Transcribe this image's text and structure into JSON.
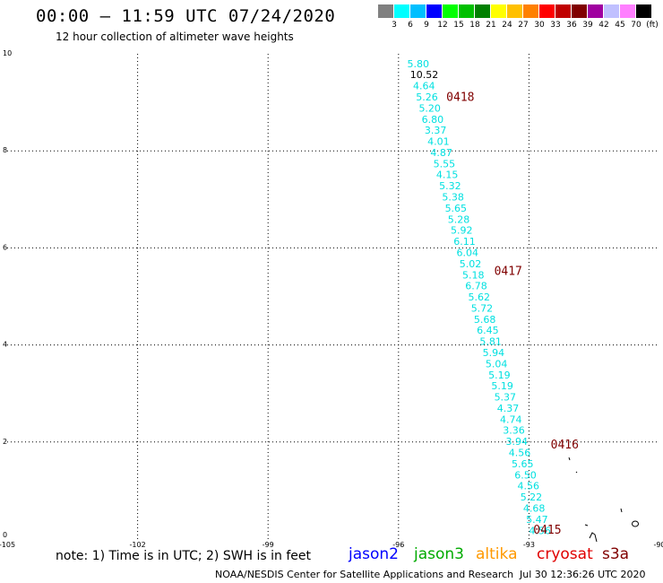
{
  "header": {
    "title": "00:00 – 11:59 UTC 07/24/2020",
    "subtitle": "12 hour collection of altimeter wave heights"
  },
  "legend": {
    "colors": [
      "#808080",
      "#00ffff",
      "#00bfff",
      "#0000ff",
      "#00ff00",
      "#00c000",
      "#008000",
      "#ffff00",
      "#ffc000",
      "#ff8000",
      "#ff0000",
      "#c00000",
      "#800000",
      "#a000a0",
      "#c0c0ff",
      "#ff80ff",
      "#000000"
    ],
    "labels": [
      "3",
      "6",
      "9",
      "12",
      "15",
      "18",
      "21",
      "24",
      "27",
      "30",
      "33",
      "36",
      "39",
      "42",
      "45",
      "70",
      "(ft)"
    ]
  },
  "footer": {
    "note": "note:  1) Time is in UTC;  2) SWH is in feet",
    "credit": "NOAA/NESDIS Center for Satellite Applications and Research",
    "timestamp": "Jul 30 12:36:26 UTC 2020"
  },
  "satellites": [
    {
      "name": "jason2",
      "color": "#0000ff"
    },
    {
      "name": "jason3",
      "color": "#00aa00"
    },
    {
      "name": "altika",
      "color": "#ff9900"
    },
    {
      "name": "cryosat",
      "color": "#e00000"
    },
    {
      "name": "s3a",
      "color": "#800000"
    }
  ],
  "chart_data": {
    "type": "scatter",
    "xlim": [
      -105,
      -90
    ],
    "ylim": [
      0,
      10
    ],
    "x_ticks": [
      -105,
      -102,
      -99,
      -96,
      -93,
      -90
    ],
    "x_tick_labels": [
      "-105",
      "-102",
      "-99",
      "-96",
      "-93",
      "-90"
    ],
    "y_ticks": [
      0,
      2,
      4,
      6,
      8,
      10
    ],
    "y_tick_labels": [
      "0",
      "2",
      "4",
      "6",
      "8",
      "10"
    ],
    "grid": true,
    "point_color": "#00e0e0",
    "highlight_color": "#000000",
    "time_label_color": "#800000",
    "track": {
      "x_start": -95.8,
      "x_end": -93.0,
      "y_start": 9.8,
      "y_end": 0.18,
      "values": [
        "5.80",
        "10.52",
        "4.64",
        "5.26",
        "5.20",
        "6.80",
        "3.37",
        "4.01",
        "4.87",
        "5.55",
        "4.15",
        "5.32",
        "5.38",
        "5.65",
        "5.28",
        "5.92",
        "6.11",
        "6.04",
        "5.02",
        "5.18",
        "6.78",
        "5.62",
        "5.72",
        "5.68",
        "6.45",
        "5.81",
        "5.94",
        "5.04",
        "5.19",
        "5.19",
        "5.37",
        "4.37",
        "4.74",
        "3.36",
        "3.94",
        "4.56",
        "5.65",
        "6.50",
        "4.56",
        "5.22",
        "4.68",
        "5.47",
        "4.56"
      ],
      "highlight_index": 1
    },
    "time_labels": [
      {
        "text": "0418",
        "x": -94.9,
        "y": 9.12
      },
      {
        "text": "0417",
        "x": -93.8,
        "y": 5.54
      },
      {
        "text": "0416",
        "x": -92.5,
        "y": 1.96
      },
      {
        "text": "0415",
        "x": -92.9,
        "y": 0.2
      }
    ]
  }
}
